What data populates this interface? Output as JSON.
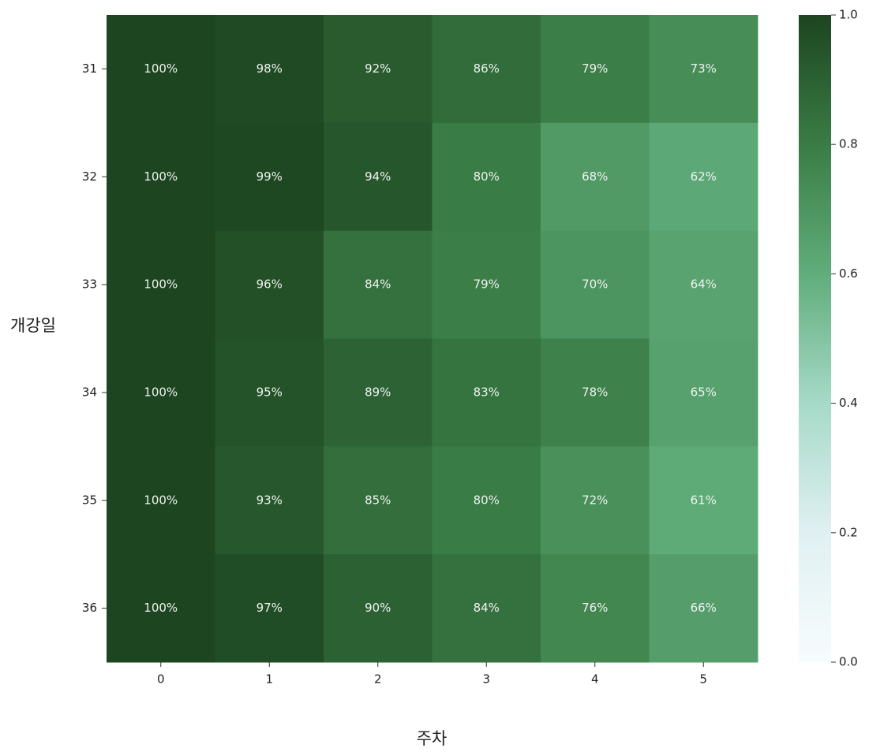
{
  "chart_data": {
    "type": "heatmap",
    "xlabel": "주차",
    "ylabel": "개강일",
    "x": [
      0,
      1,
      2,
      3,
      4,
      5
    ],
    "y": [
      31,
      32,
      33,
      34,
      35,
      36
    ],
    "values": [
      [
        1.0,
        0.98,
        0.92,
        0.86,
        0.79,
        0.73
      ],
      [
        1.0,
        0.99,
        0.94,
        0.8,
        0.68,
        0.62
      ],
      [
        1.0,
        0.96,
        0.84,
        0.79,
        0.7,
        0.64
      ],
      [
        1.0,
        0.95,
        0.89,
        0.83,
        0.78,
        0.65
      ],
      [
        1.0,
        0.93,
        0.85,
        0.8,
        0.72,
        0.61
      ],
      [
        1.0,
        0.97,
        0.9,
        0.84,
        0.76,
        0.66
      ]
    ],
    "value_labels": [
      [
        "100%",
        "98%",
        "92%",
        "86%",
        "79%",
        "73%"
      ],
      [
        "100%",
        "99%",
        "94%",
        "80%",
        "68%",
        "62%"
      ],
      [
        "100%",
        "96%",
        "84%",
        "79%",
        "70%",
        "64%"
      ],
      [
        "100%",
        "95%",
        "89%",
        "83%",
        "78%",
        "65%"
      ],
      [
        "100%",
        "93%",
        "85%",
        "80%",
        "72%",
        "61%"
      ],
      [
        "100%",
        "97%",
        "90%",
        "84%",
        "76%",
        "66%"
      ]
    ],
    "colormap": [
      "#f7fcfd",
      "#e0f0f2",
      "#a6dac8",
      "#60ad7b",
      "#3a7c45",
      "#1d4520"
    ],
    "clim": [
      0,
      1
    ],
    "cticks": [
      {
        "value": 0,
        "label": "0.0"
      },
      0.2,
      0.4,
      0.6,
      0.8,
      {
        "value": 1,
        "label": "1.0"
      }
    ]
  }
}
